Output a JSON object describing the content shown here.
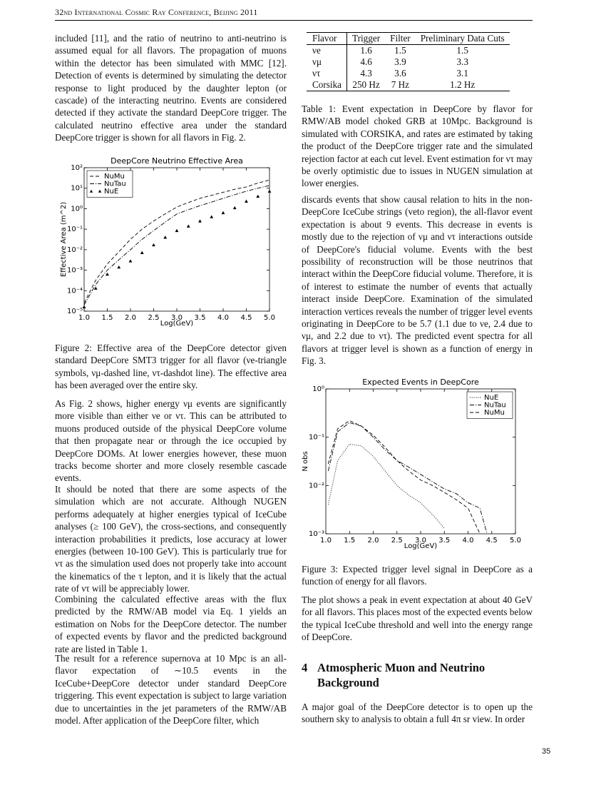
{
  "header": {
    "running_title": "32nd International Cosmic Ray Conference, Beijing 2011"
  },
  "left_column": {
    "p1": "included [11], and the ratio of neutrino to anti-neutrino is assumed equal for all flavors. The propagation of muons within the detector has been simulated with MMC [12]. Detection of events is determined by simulating the detector response to light produced by the daughter lepton (or cascade) of the interacting neutrino. Events are considered detected if they activate the standard DeepCore trigger. The calculated neutrino effective area under the standard DeepCore trigger is shown for all flavors in Fig. 2.",
    "figure2_caption": "Figure 2: Effective area of the DeepCore detector given standard DeepCore SMT3 trigger for all flavor (νe-triangle symbols, νμ-dashed line, ντ-dashdot line). The effective area has been averaged over the entire sky.",
    "p2": "As Fig. 2 shows, higher energy νμ events are significantly more visible than either νe or ντ. This can be attributed to muons produced outside of the physical DeepCore volume that then propagate near or through the ice occupied by DeepCore DOMs. At lower energies however, these muon tracks become shorter and more closely resemble cascade events.",
    "p3": "It should be noted that there are some aspects of the simulation which are not accurate. Although NUGEN performs adequately at higher energies typical of IceCube analyses (≥ 100 GeV), the cross-sections, and consequently interaction probabilities it predicts, lose accuracy at lower energies (between 10-100 GeV). This is particularly true for ντ as the simulation used does not properly take into account the kinematics of the τ lepton, and it is likely that the actual rate of ντ will be appreciably lower.",
    "p4": "Combining the calculated effective areas with the flux predicted by the RMW/AB model via Eq. 1 yields an estimation on Nobs for the DeepCore detector. The number of expected events by flavor and the predicted background rate are listed in Table 1.",
    "p5": "The result for a reference supernova at 10 Mpc is an all-flavor expectation of ∼10.5 events in the IceCube+DeepCore detector under standard DeepCore triggering. This event expectation is subject to large variation due to uncertainties in the jet parameters of the RMW/AB model. After application of the DeepCore filter, which"
  },
  "table": {
    "header": [
      "Flavor",
      "Trigger",
      "Filter",
      "Preliminary Data Cuts"
    ],
    "rows": [
      [
        "νe",
        "1.6",
        "1.5",
        "1.5"
      ],
      [
        "νμ",
        "4.6",
        "3.9",
        "3.3"
      ],
      [
        "ντ",
        "4.3",
        "3.6",
        "3.1"
      ],
      [
        "Corsika",
        "250 Hz",
        "7 Hz",
        "1.2 Hz"
      ]
    ],
    "caption": "Table 1: Event expectation in DeepCore by flavor for RMW/AB model choked GRB at 10Mpc. Background is simulated with CORSIKA, and rates are estimated by taking the product of the DeepCore trigger rate and the simulated rejection factor at each cut level. Event estimation for ντ may be overly optimistic due to issues in NUGEN simulation at lower energies."
  },
  "right_column": {
    "p1": "discards events that show causal relation to hits in the non-DeepCore IceCube strings (veto region), the all-flavor event expectation is about 9 events. This decrease in events is mostly due to the rejection of νμ and ντ interactions outside of DeepCore's fiducial volume. Events with the best possibility of reconstruction will be those neutrinos that interact within the DeepCore fiducial volume. Therefore, it is of interest to estimate the number of events that actually interact inside DeepCore. Examination of the simulated interaction vertices reveals the number of trigger level events originating in DeepCore to be 5.7 (1.1 due to νe, 2.4 due to νμ, and 2.2 due to ντ). The predicted event spectra for all flavors at trigger level is shown as a function of energy in Fig. 3.",
    "figure3_caption": "Figure 3: Expected trigger level signal in DeepCore as a function of energy for all flavors.",
    "p2": "The plot shows a peak in event expectation at about 40 GeV for all flavors. This places most of the expected events below the typical IceCube threshold and well into the energy range of DeepCore.",
    "section_number": "4",
    "section_title": "Atmospheric Muon and Neutrino Background",
    "p3": "A major goal of the DeepCore detector is to open up the southern sky to analysis to obtain a full 4π sr view. In order"
  },
  "footer": {
    "page_number": "35"
  },
  "chart_data": [
    {
      "type": "line",
      "title": "DeepCore Neutrino Effective Area",
      "xlabel": "Log(GeV)",
      "ylabel": "Effective Area (m^2)",
      "yscale": "log",
      "legend": "upper left",
      "x": [
        1.0,
        1.25,
        1.5,
        1.75,
        2.0,
        2.25,
        2.5,
        2.75,
        3.0,
        3.25,
        3.5,
        3.75,
        4.0,
        4.25,
        4.5,
        4.75,
        5.0
      ],
      "series": [
        {
          "name": "NuMu",
          "color": "#000000",
          "linestyle": "dashed",
          "marker": "none",
          "values": [
            2.5e-05,
            0.00032,
            0.002,
            0.0079,
            0.032,
            0.1,
            0.25,
            0.56,
            1.2,
            2.0,
            3.2,
            4.5,
            6.3,
            8.9,
            11.5,
            17.8,
            25
          ]
        },
        {
          "name": "NuTau",
          "color": "#000000",
          "linestyle": "dashdot",
          "marker": "none",
          "values": [
            2e-05,
            0.0002,
            0.001,
            0.0032,
            0.01,
            0.032,
            0.085,
            0.22,
            0.55,
            0.89,
            1.4,
            2.1,
            3.2,
            4.8,
            7.1,
            10,
            13.5
          ]
        },
        {
          "name": "NuE",
          "color": "#000000",
          "linestyle": "none",
          "marker": "triangle",
          "values": [
            1.6e-05,
            0.00013,
            0.00063,
            0.0014,
            0.0028,
            0.0071,
            0.017,
            0.04,
            0.085,
            0.14,
            0.25,
            0.4,
            0.63,
            1.1,
            2.3,
            4.0,
            7.1
          ]
        }
      ],
      "xlim": [
        1.0,
        5.0
      ],
      "xticks": [
        {
          "value": 1,
          "label": "1.0"
        },
        1.5,
        {
          "value": 2,
          "label": "2.0"
        },
        2.5,
        {
          "value": 3,
          "label": "3.0"
        },
        3.5,
        {
          "value": 4,
          "label": "4.0"
        },
        4.5,
        {
          "value": 5,
          "label": "5.0"
        }
      ],
      "ylim": [
        1e-05,
        100
      ],
      "yticks": [
        {
          "value": 100,
          "label": "10²"
        },
        {
          "value": 10,
          "label": "10¹"
        },
        {
          "value": 1,
          "label": "10⁰"
        },
        {
          "value": 0.1,
          "label": "10⁻¹"
        },
        {
          "value": 0.01,
          "label": "10⁻²"
        },
        {
          "value": 0.001,
          "label": "10⁻³"
        },
        {
          "value": 0.0001,
          "label": "10⁻⁴"
        },
        {
          "value": 1e-05,
          "label": "10⁻⁵"
        }
      ]
    },
    {
      "type": "line",
      "title": "Expected Events in DeepCore",
      "xlabel": "Log(GeV)",
      "ylabel": "N obs",
      "yscale": "log",
      "legend": "upper right",
      "x": [
        1.05,
        1.25,
        1.5,
        1.75,
        2.0,
        2.25,
        2.5,
        2.75,
        3.0,
        3.25,
        3.5,
        3.75,
        4.0,
        4.25,
        4.4
      ],
      "series": [
        {
          "name": "NuE",
          "color": "#000000",
          "linestyle": "dotted",
          "marker": "none",
          "values": [
            0.004,
            0.033,
            0.072,
            0.066,
            0.04,
            0.02,
            0.01,
            0.0063,
            0.0044,
            0.0025,
            0.0013,
            null,
            null,
            null,
            null
          ]
        },
        {
          "name": "NuTau",
          "color": "#000000",
          "linestyle": "dashdot",
          "marker": "none",
          "values": [
            0.02,
            0.13,
            0.2,
            0.17,
            0.1,
            0.055,
            0.033,
            0.024,
            0.017,
            0.012,
            0.0085,
            0.0068,
            0.0044,
            0.0034,
            0.001
          ]
        },
        {
          "name": "NuMu",
          "color": "#000000",
          "linestyle": "dashed",
          "marker": "none",
          "values": [
            0.028,
            0.15,
            0.22,
            0.17,
            0.11,
            0.062,
            0.033,
            0.02,
            0.013,
            0.01,
            0.0072,
            0.0051,
            0.0034,
            0.001,
            null
          ]
        }
      ],
      "xlim": [
        1.0,
        5.0
      ],
      "xticks": [
        {
          "value": 1,
          "label": "1.0"
        },
        1.5,
        {
          "value": 2,
          "label": "2.0"
        },
        2.5,
        {
          "value": 3,
          "label": "3.0"
        },
        3.5,
        {
          "value": 4,
          "label": "4.0"
        },
        4.5,
        {
          "value": 5,
          "label": "5.0"
        }
      ],
      "ylim": [
        0.001,
        1
      ],
      "yticks": [
        {
          "value": 1,
          "label": "10⁰"
        },
        {
          "value": 0.1,
          "label": "10⁻¹"
        },
        {
          "value": 0.01,
          "label": "10⁻²"
        },
        {
          "value": 0.001,
          "label": "10⁻³"
        }
      ]
    }
  ]
}
